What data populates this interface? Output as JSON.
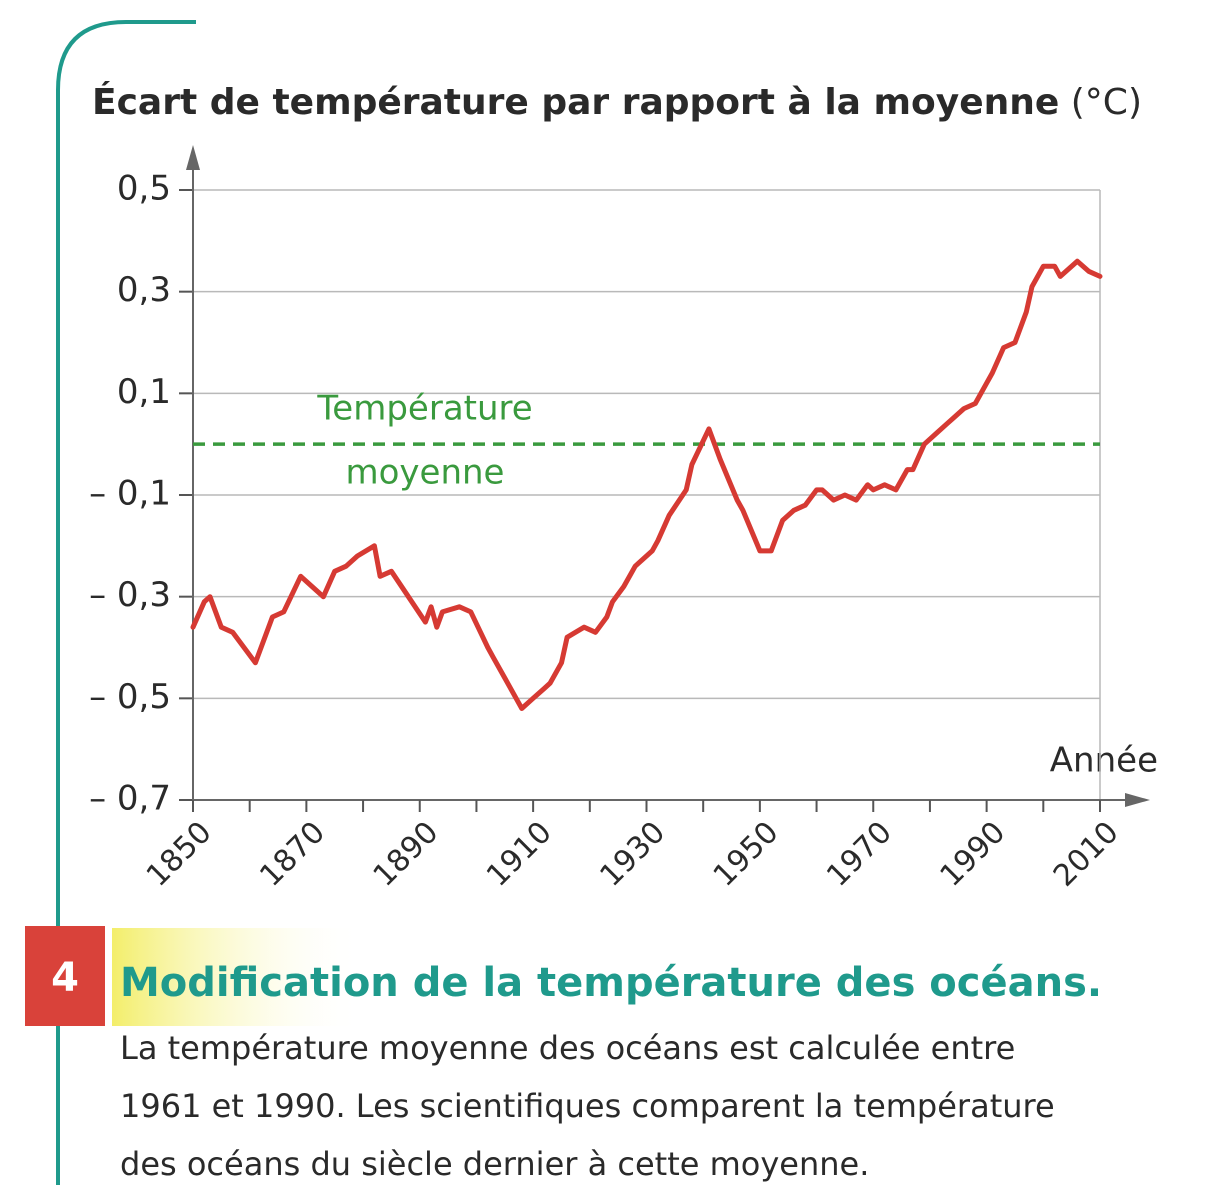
{
  "chart_data": {
    "type": "line",
    "title": "Écart de température par rapport à la moyenne",
    "y_unit": "(°C)",
    "x_label": "Année",
    "annotation": [
      "Température",
      "moyenne"
    ],
    "average_line": {
      "value": 0,
      "color": "#3a9a3e"
    },
    "x": [
      1850,
      1852,
      1853,
      1855,
      1857,
      1861,
      1864,
      1866,
      1869,
      1871,
      1873,
      1875,
      1877,
      1879,
      1882,
      1883,
      1885,
      1888,
      1891,
      1892,
      1893,
      1894,
      1897,
      1899,
      1902,
      1903,
      1905,
      1907,
      1908,
      1910,
      1912,
      1913,
      1915,
      1916,
      1919,
      1921,
      1923,
      1924,
      1926,
      1928,
      1931,
      1932,
      1934,
      1937,
      1938,
      1941,
      1943,
      1946,
      1947,
      1950,
      1952,
      1954,
      1956,
      1958,
      1960,
      1961,
      1963,
      1965,
      1967,
      1969,
      1970,
      1972,
      1974,
      1976,
      1977,
      1979,
      1981,
      1983,
      1984,
      1986,
      1988,
      1990,
      1991,
      1993,
      1995,
      1997,
      1998,
      2000,
      2002,
      2003,
      2006,
      2008,
      2010
    ],
    "series": [
      {
        "color": "#d63a33",
        "values": [
          -0.36,
          -0.31,
          -0.3,
          -0.36,
          -0.37,
          -0.43,
          -0.34,
          -0.33,
          -0.26,
          -0.28,
          -0.3,
          -0.25,
          -0.24,
          -0.22,
          -0.2,
          -0.26,
          -0.25,
          -0.3,
          -0.35,
          -0.32,
          -0.36,
          -0.33,
          -0.32,
          -0.33,
          -0.4,
          -0.42,
          -0.46,
          -0.5,
          -0.52,
          -0.5,
          -0.48,
          -0.47,
          -0.43,
          -0.38,
          -0.36,
          -0.37,
          -0.34,
          -0.31,
          -0.28,
          -0.24,
          -0.21,
          -0.19,
          -0.14,
          -0.09,
          -0.04,
          0.03,
          -0.03,
          -0.11,
          -0.13,
          -0.21,
          -0.21,
          -0.15,
          -0.13,
          -0.12,
          -0.09,
          -0.09,
          -0.11,
          -0.1,
          -0.11,
          -0.08,
          -0.09,
          -0.08,
          -0.09,
          -0.05,
          -0.05,
          0.0,
          0.02,
          0.04,
          0.05,
          0.07,
          0.08,
          0.12,
          0.14,
          0.19,
          0.2,
          0.26,
          0.31,
          0.35,
          0.35,
          0.33,
          0.36,
          0.34,
          0.33
        ]
      }
    ],
    "xlim": [
      1850,
      2010
    ],
    "ylim": [
      -0.7,
      0.5
    ],
    "xticks": [
      1850,
      1870,
      1890,
      1910,
      1930,
      1950,
      1970,
      1990,
      2010
    ],
    "xticks_minor": [
      1860,
      1880,
      1900,
      1920,
      1940,
      1960,
      1980,
      2000
    ],
    "yticks": [
      {
        "value": 0.5,
        "label": "0,5"
      },
      {
        "value": 0.3,
        "label": "0,3"
      },
      {
        "value": 0.1,
        "label": "0,1"
      },
      {
        "value": -0.1,
        "label": "– 0,1"
      },
      {
        "value": -0.3,
        "label": "– 0,3"
      },
      {
        "value": -0.5,
        "label": "– 0,5"
      },
      {
        "value": -0.7,
        "label": "– 0,7"
      }
    ],
    "grid": true
  },
  "caption": {
    "number": "4",
    "title": "Modification de la température des océans.",
    "lines": [
      "La température moyenne des océans est calculée entre",
      "1961 et 1990. Les scientifiques comparent la température",
      "des océans du siècle dernier à cette moyenne."
    ]
  }
}
